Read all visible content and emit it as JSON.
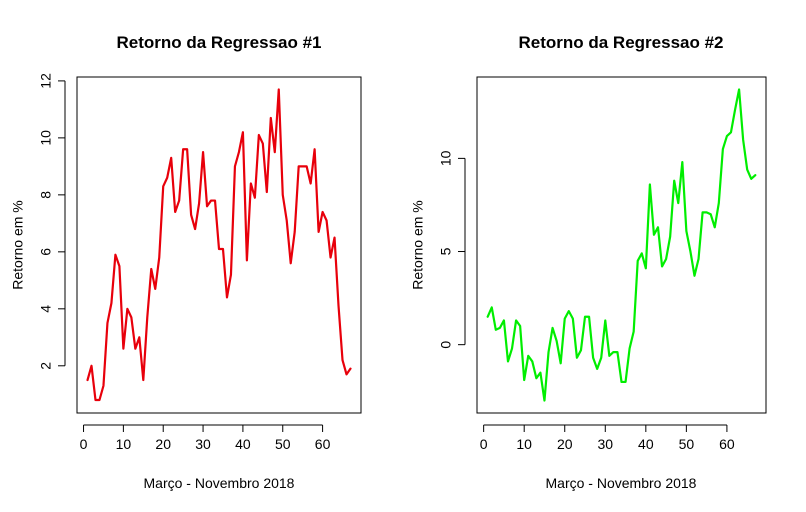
{
  "chart_data": [
    {
      "type": "line",
      "title": "Retorno da Regressao #1",
      "xlabel": "Março - Novembro 2018",
      "ylabel": "Retorno em %",
      "xlim": [
        1,
        67
      ],
      "ylim": [
        0.78,
        11.7
      ],
      "x_ticks": [
        0,
        10,
        20,
        30,
        40,
        50,
        60
      ],
      "y_ticks": [
        2,
        4,
        6,
        8,
        10,
        12
      ],
      "grid": false,
      "color": "#e8000b",
      "series": [
        {
          "x": [
            1,
            2,
            3,
            4,
            5,
            6,
            7,
            8,
            9,
            10,
            11,
            12,
            13,
            14,
            15,
            16,
            17,
            18,
            19,
            20,
            21,
            22,
            23,
            24,
            25,
            26,
            27,
            28,
            29,
            30,
            31,
            32,
            33,
            34,
            35,
            36,
            37,
            38,
            39,
            40,
            41,
            42,
            43,
            44,
            45,
            46,
            47,
            48,
            49,
            50,
            51,
            52,
            53,
            54,
            55,
            56,
            57,
            58,
            59,
            60,
            61,
            62,
            63,
            64,
            65,
            66,
            67
          ],
          "values": [
            1.5,
            2.0,
            0.8,
            0.8,
            1.3,
            3.5,
            4.2,
            5.9,
            5.5,
            2.6,
            4.0,
            3.7,
            2.6,
            3.0,
            1.5,
            3.7,
            5.4,
            4.7,
            5.8,
            8.3,
            8.6,
            9.3,
            7.4,
            7.8,
            9.6,
            9.6,
            7.3,
            6.8,
            7.7,
            9.5,
            7.6,
            7.8,
            7.8,
            6.1,
            6.1,
            4.4,
            5.2,
            9.0,
            9.5,
            10.2,
            5.7,
            8.4,
            7.9,
            10.1,
            9.8,
            8.1,
            10.7,
            9.5,
            11.7,
            8.0,
            7.1,
            5.6,
            6.7,
            9.0,
            9.0,
            9.0,
            8.4,
            9.6,
            6.7,
            7.4,
            7.1,
            5.8,
            6.5,
            4.1,
            2.2,
            1.7,
            1.9
          ]
        }
      ]
    },
    {
      "type": "line",
      "title": "Retorno da Regressao #2",
      "xlabel": "Março - Novembro 2018",
      "ylabel": "Retorno em %",
      "xlim": [
        1,
        67
      ],
      "ylim": [
        -3.0,
        13.7
      ],
      "x_ticks": [
        0,
        10,
        20,
        30,
        40,
        50,
        60
      ],
      "y_ticks": [
        0,
        5,
        10
      ],
      "grid": false,
      "color": "#00ee00",
      "series": [
        {
          "x": [
            1,
            2,
            3,
            4,
            5,
            6,
            7,
            8,
            9,
            10,
            11,
            12,
            13,
            14,
            15,
            16,
            17,
            18,
            19,
            20,
            21,
            22,
            23,
            24,
            25,
            26,
            27,
            28,
            29,
            30,
            31,
            32,
            33,
            34,
            35,
            36,
            37,
            38,
            39,
            40,
            41,
            42,
            43,
            44,
            45,
            46,
            47,
            48,
            49,
            50,
            51,
            52,
            53,
            54,
            55,
            56,
            57,
            58,
            59,
            60,
            61,
            62,
            63,
            64,
            65,
            66,
            67
          ],
          "values": [
            1.5,
            2.0,
            0.8,
            0.9,
            1.3,
            -0.9,
            -0.2,
            1.3,
            1.0,
            -1.9,
            -0.6,
            -0.9,
            -1.8,
            -1.5,
            -3.0,
            -0.4,
            0.9,
            0.2,
            -1.0,
            1.4,
            1.8,
            1.4,
            -0.7,
            -0.3,
            1.5,
            1.5,
            -0.7,
            -1.3,
            -0.7,
            1.3,
            -0.6,
            -0.4,
            -0.4,
            -2.0,
            -2.0,
            -0.2,
            0.7,
            4.5,
            4.9,
            4.1,
            8.6,
            5.9,
            6.3,
            4.2,
            4.6,
            5.8,
            8.8,
            7.6,
            9.8,
            6.1,
            5.0,
            3.7,
            4.6,
            7.1,
            7.1,
            7.0,
            6.3,
            7.6,
            10.5,
            11.2,
            11.4,
            12.6,
            13.7,
            11.0,
            9.4,
            8.9,
            9.1
          ]
        }
      ]
    }
  ]
}
